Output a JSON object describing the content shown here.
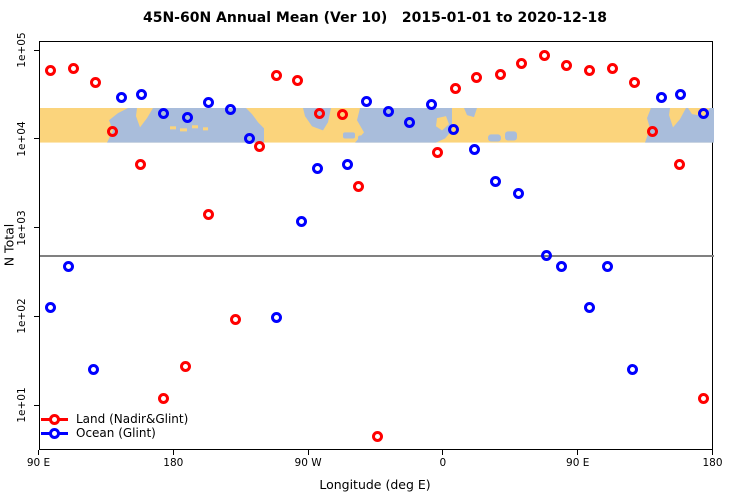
{
  "title": "45N-60N Annual Mean (Ver 10)   2015-01-01 to 2020-12-18",
  "colors": {
    "land_series": "#ff0000",
    "ocean_series": "#0000ff",
    "band_land": "#fbd47c",
    "band_ocean": "#a9bddb",
    "reference_line": "#808080",
    "axis": "#000000"
  },
  "legend": {
    "items": [
      {
        "label": "Land (Nadir&Glint)",
        "color": "#ff0000"
      },
      {
        "label": "Ocean (Glint)",
        "color": "#0000ff"
      }
    ]
  },
  "chart_data": {
    "type": "scatter",
    "title": "45N-60N Annual Mean (Ver 10)   2015-01-01 to 2020-12-18",
    "xlabel": "Longitude (deg E)",
    "ylabel": "N Total",
    "x_axis": {
      "description": "Longitude axis starting at 90E, wrapping eastward around the globe for 450 degrees; data for 90E-180E is plotted twice (both ends).",
      "axis_deg_range": [
        0,
        450
      ],
      "ticks": [
        {
          "label": "90 E",
          "d": 0
        },
        {
          "label": "180",
          "d": 90
        },
        {
          "label": "90 W",
          "d": 180
        },
        {
          "label": "0",
          "d": 270
        },
        {
          "label": "90 E",
          "d": 360
        },
        {
          "label": "180",
          "d": 450
        }
      ]
    },
    "y_axis": {
      "scale": "log10",
      "tick_values": [
        100000,
        10000,
        1000,
        100,
        10
      ],
      "tick_labels": [
        "1e+05",
        "1e+04",
        "1e+03",
        "1e+02",
        "1e+01"
      ],
      "approx_range": [
        3,
        130000
      ],
      "grid": false
    },
    "reference_line": {
      "value": 490,
      "color": "#808080"
    },
    "map_band": {
      "description": "World-map strip of the 45N-60N latitude zone drawn across the plot (land = yellow, ocean = light blue)",
      "value_min": 9300,
      "value_max": 22800
    },
    "legend_position": "bottom-left",
    "series": [
      {
        "name": "Land (Nadir&Glint)",
        "color": "#ff0000",
        "marker": "open-circle",
        "points": [
          {
            "d": 7.5,
            "lon": "97.5E",
            "value": 61000
          },
          {
            "d": 22.5,
            "lon": "112.5E",
            "value": 63000
          },
          {
            "d": 37.5,
            "lon": "127.5E",
            "value": 44000
          },
          {
            "d": 49,
            "lon": "139E",
            "value": 12500
          },
          {
            "d": 67.5,
            "lon": "157.5E",
            "value": 5300
          },
          {
            "d": 83,
            "lon": "173E",
            "value": 12
          },
          {
            "d": 97.5,
            "lon": "172.5W",
            "value": 28
          },
          {
            "d": 113,
            "lon": "157W",
            "value": 1450
          },
          {
            "d": 131,
            "lon": "139W",
            "value": 95
          },
          {
            "d": 147,
            "lon": "123W",
            "value": 8500
          },
          {
            "d": 158,
            "lon": "112W",
            "value": 53000
          },
          {
            "d": 172,
            "lon": "98W",
            "value": 46000
          },
          {
            "d": 187,
            "lon": "83W",
            "value": 20000
          },
          {
            "d": 202,
            "lon": "68W",
            "value": 19500
          },
          {
            "d": 213,
            "lon": "57W",
            "value": 3000
          },
          {
            "d": 226,
            "lon": "44W",
            "value": 4.5
          },
          {
            "d": 266,
            "lon": "4W",
            "value": 7200
          },
          {
            "d": 278,
            "lon": "8E",
            "value": 38000
          },
          {
            "d": 292,
            "lon": "22E",
            "value": 50000
          },
          {
            "d": 308,
            "lon": "38E",
            "value": 55000
          },
          {
            "d": 322,
            "lon": "52E",
            "value": 73000
          },
          {
            "d": 337,
            "lon": "67E",
            "value": 88000
          },
          {
            "d": 352,
            "lon": "82E",
            "value": 69000
          },
          {
            "d": 367.5,
            "lon": "97.5E",
            "value": 61000
          },
          {
            "d": 382.5,
            "lon": "112.5E",
            "value": 63000
          },
          {
            "d": 397.5,
            "lon": "127.5E",
            "value": 44000
          },
          {
            "d": 409,
            "lon": "139E",
            "value": 12500
          },
          {
            "d": 427.5,
            "lon": "157.5E",
            "value": 5300
          },
          {
            "d": 443,
            "lon": "173E",
            "value": 12
          }
        ]
      },
      {
        "name": "Ocean (Glint)",
        "color": "#0000ff",
        "marker": "open-circle",
        "points": [
          {
            "d": 7.5,
            "lon": "97.5E",
            "value": 130
          },
          {
            "d": 19.5,
            "lon": "109.5E",
            "value": 370
          },
          {
            "d": 36,
            "lon": "126E",
            "value": 26
          },
          {
            "d": 55,
            "lon": "145E",
            "value": 30000
          },
          {
            "d": 68,
            "lon": "158E",
            "value": 32000
          },
          {
            "d": 83,
            "lon": "173E",
            "value": 20000
          },
          {
            "d": 98.5,
            "lon": "171.5W",
            "value": 18000
          },
          {
            "d": 113,
            "lon": "157W",
            "value": 26000
          },
          {
            "d": 127.5,
            "lon": "142.5W",
            "value": 22000
          },
          {
            "d": 140,
            "lon": "130W",
            "value": 10400
          },
          {
            "d": 158,
            "lon": "112W",
            "value": 100
          },
          {
            "d": 175,
            "lon": "95W",
            "value": 1200
          },
          {
            "d": 185.5,
            "lon": "84.5W",
            "value": 4800
          },
          {
            "d": 205.5,
            "lon": "64.5W",
            "value": 5200
          },
          {
            "d": 218,
            "lon": "52W",
            "value": 27000
          },
          {
            "d": 233,
            "lon": "37W",
            "value": 21000
          },
          {
            "d": 247,
            "lon": "23W",
            "value": 15500
          },
          {
            "d": 262,
            "lon": "8W",
            "value": 25000
          },
          {
            "d": 276.5,
            "lon": "6.5E",
            "value": 13000
          },
          {
            "d": 290.5,
            "lon": "20.5E",
            "value": 7800
          },
          {
            "d": 304.5,
            "lon": "34.5E",
            "value": 3400
          },
          {
            "d": 320,
            "lon": "50E",
            "value": 2500
          },
          {
            "d": 338.5,
            "lon": "68.5E",
            "value": 490
          },
          {
            "d": 348.5,
            "lon": "78.5E",
            "value": 370
          },
          {
            "d": 367.5,
            "lon": "97.5E",
            "value": 130
          },
          {
            "d": 379.5,
            "lon": "109.5E",
            "value": 370
          },
          {
            "d": 396,
            "lon": "126E",
            "value": 26
          },
          {
            "d": 415,
            "lon": "145E",
            "value": 30000
          },
          {
            "d": 428,
            "lon": "158E",
            "value": 32000
          },
          {
            "d": 443,
            "lon": "173E",
            "value": 20000
          }
        ]
      }
    ]
  }
}
